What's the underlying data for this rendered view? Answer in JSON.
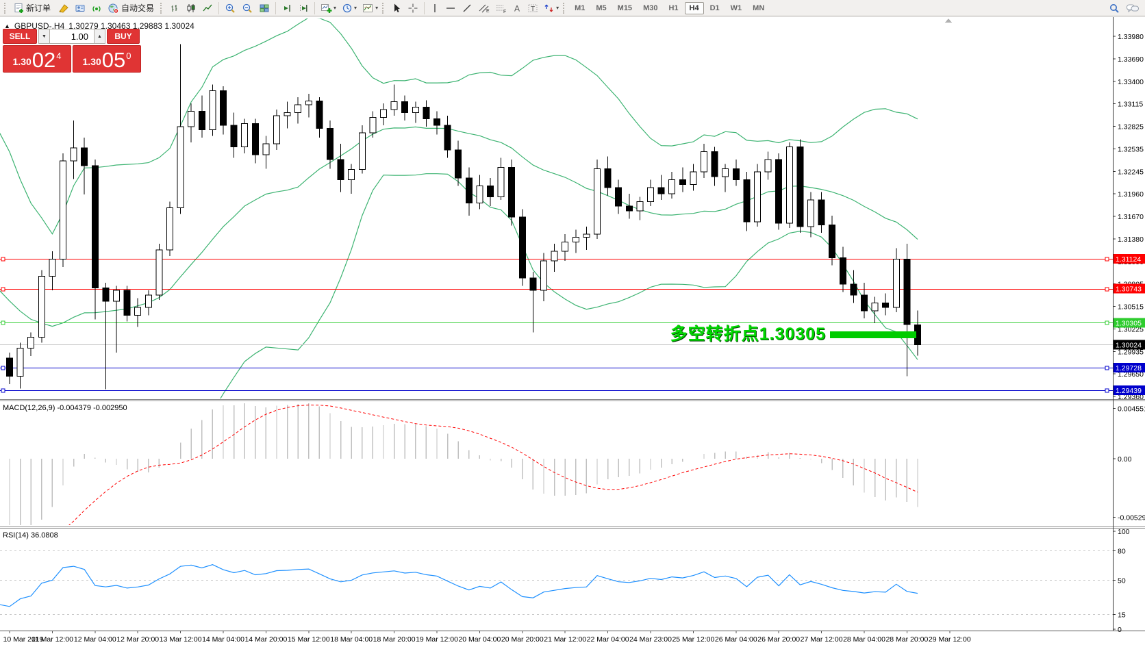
{
  "toolbar": {
    "new_order_label": "新订单",
    "autotrading_label": "自动交易",
    "timeframes": [
      "M1",
      "M5",
      "M15",
      "M30",
      "H1",
      "H4",
      "D1",
      "W1",
      "MN"
    ],
    "active_timeframe": "H4"
  },
  "trade_panel": {
    "sell_label": "SELL",
    "buy_label": "BUY",
    "volume": "1.00",
    "sell_price": {
      "small": "1.30",
      "big": "02",
      "sup": "4"
    },
    "buy_price": {
      "small": "1.30",
      "big": "05",
      "sup": "0"
    }
  },
  "chart_title": {
    "marker": "▲",
    "symbol_period": "GBPUSD-,H4",
    "ohlc": "1.30279 1.30463 1.29883 1.30024"
  },
  "annotation": {
    "text": "多空转折点1.30305",
    "level": 1.30305,
    "color": "#00D800",
    "bar_color": "#00CC00"
  },
  "chart_data": {
    "type": "candlestick",
    "symbol": "GBPUSD-",
    "period": "H4",
    "price_ticks": [
      "1.33980",
      "1.33690",
      "1.33400",
      "1.33115",
      "1.32825",
      "1.32535",
      "1.32245",
      "1.31960",
      "1.31670",
      "1.31380",
      "1.31090",
      "1.30805",
      "1.30515",
      "1.30225",
      "1.29935",
      "1.29650",
      "1.29360"
    ],
    "time_labels": [
      "10 Mar 2019",
      "11 Mar 12:00",
      "12 Mar 04:00",
      "12 Mar 20:00",
      "13 Mar 12:00",
      "14 Mar 04:00",
      "14 Mar 20:00",
      "15 Mar 12:00",
      "18 Mar 04:00",
      "18 Mar 20:00",
      "19 Mar 12:00",
      "20 Mar 04:00",
      "20 Mar 20:00",
      "21 Mar 12:00",
      "22 Mar 04:00",
      "24 Mar 23:00",
      "25 Mar 12:00",
      "26 Mar 04:00",
      "26 Mar 20:00",
      "27 Mar 12:00",
      "28 Mar 04:00",
      "28 Mar 20:00",
      "29 Mar 12:00"
    ],
    "candles": [
      [
        1.2985,
        1.2992,
        1.2952,
        1.2962
      ],
      [
        1.2962,
        1.3005,
        1.2946,
        1.2998
      ],
      [
        1.2998,
        1.3018,
        1.2988,
        1.3012
      ],
      [
        1.3012,
        1.3098,
        1.3005,
        1.309
      ],
      [
        1.309,
        1.3122,
        1.3072,
        1.3112
      ],
      [
        1.3112,
        1.3248,
        1.3102,
        1.3238
      ],
      [
        1.3238,
        1.329,
        1.3215,
        1.3255
      ],
      [
        1.3255,
        1.3268,
        1.3195,
        1.3232
      ],
      [
        1.3232,
        1.324,
        1.3035,
        1.3075
      ],
      [
        1.3075,
        1.3082,
        1.2945,
        1.3058
      ],
      [
        1.3058,
        1.3078,
        1.2992,
        1.3072
      ],
      [
        1.3072,
        1.3078,
        1.3032,
        1.304
      ],
      [
        1.304,
        1.3062,
        1.3025,
        1.305
      ],
      [
        1.305,
        1.3072,
        1.304,
        1.3066
      ],
      [
        1.3066,
        1.3132,
        1.306,
        1.3124
      ],
      [
        1.3124,
        1.3186,
        1.3116,
        1.3178
      ],
      [
        1.3178,
        1.3388,
        1.317,
        1.3282
      ],
      [
        1.3282,
        1.3312,
        1.3262,
        1.3302
      ],
      [
        1.3302,
        1.3322,
        1.3268,
        1.3278
      ],
      [
        1.3278,
        1.3336,
        1.327,
        1.3328
      ],
      [
        1.3328,
        1.3334,
        1.3272,
        1.3284
      ],
      [
        1.3284,
        1.33,
        1.3242,
        1.3256
      ],
      [
        1.3256,
        1.3292,
        1.3248,
        1.3286
      ],
      [
        1.3286,
        1.3292,
        1.3235,
        1.3246
      ],
      [
        1.3246,
        1.327,
        1.3228,
        1.326
      ],
      [
        1.326,
        1.3304,
        1.3252,
        1.3296
      ],
      [
        1.3296,
        1.3314,
        1.328,
        1.33
      ],
      [
        1.33,
        1.332,
        1.3286,
        1.331
      ],
      [
        1.331,
        1.3324,
        1.3294,
        1.3315
      ],
      [
        1.3315,
        1.332,
        1.3268,
        1.328
      ],
      [
        1.328,
        1.329,
        1.3228,
        1.324
      ],
      [
        1.324,
        1.326,
        1.3198,
        1.3214
      ],
      [
        1.3214,
        1.3234,
        1.3196,
        1.3227
      ],
      [
        1.3227,
        1.3284,
        1.3222,
        1.3274
      ],
      [
        1.3274,
        1.3302,
        1.3268,
        1.3294
      ],
      [
        1.3294,
        1.3312,
        1.3284,
        1.3304
      ],
      [
        1.3304,
        1.3336,
        1.3296,
        1.3314
      ],
      [
        1.3314,
        1.3322,
        1.329,
        1.33
      ],
      [
        1.33,
        1.3314,
        1.3287,
        1.3307
      ],
      [
        1.3307,
        1.3316,
        1.3282,
        1.3292
      ],
      [
        1.3292,
        1.3302,
        1.3272,
        1.3284
      ],
      [
        1.3284,
        1.3296,
        1.3242,
        1.3252
      ],
      [
        1.3252,
        1.3264,
        1.3206,
        1.3216
      ],
      [
        1.3216,
        1.323,
        1.3168,
        1.3184
      ],
      [
        1.3184,
        1.322,
        1.3176,
        1.3206
      ],
      [
        1.3206,
        1.3216,
        1.318,
        1.3192
      ],
      [
        1.3192,
        1.3242,
        1.3188,
        1.323
      ],
      [
        1.323,
        1.324,
        1.3155,
        1.3166
      ],
      [
        1.3166,
        1.3176,
        1.3078,
        1.3088
      ],
      [
        1.3088,
        1.3096,
        1.3018,
        1.3072
      ],
      [
        1.3072,
        1.312,
        1.3058,
        1.311
      ],
      [
        1.311,
        1.3132,
        1.3096,
        1.3122
      ],
      [
        1.3122,
        1.3144,
        1.311,
        1.3134
      ],
      [
        1.3134,
        1.315,
        1.312,
        1.314
      ],
      [
        1.314,
        1.3154,
        1.3124,
        1.3144
      ],
      [
        1.3144,
        1.324,
        1.3138,
        1.3228
      ],
      [
        1.3228,
        1.3244,
        1.3194,
        1.3204
      ],
      [
        1.3204,
        1.3214,
        1.317,
        1.318
      ],
      [
        1.318,
        1.3196,
        1.3164,
        1.3174
      ],
      [
        1.3174,
        1.3192,
        1.3162,
        1.3186
      ],
      [
        1.3186,
        1.3214,
        1.318,
        1.3204
      ],
      [
        1.3204,
        1.322,
        1.3188,
        1.3196
      ],
      [
        1.3196,
        1.3224,
        1.319,
        1.3214
      ],
      [
        1.3214,
        1.323,
        1.3198,
        1.3208
      ],
      [
        1.3208,
        1.3234,
        1.32,
        1.3224
      ],
      [
        1.3224,
        1.326,
        1.3216,
        1.325
      ],
      [
        1.325,
        1.3256,
        1.3206,
        1.3218
      ],
      [
        1.3218,
        1.3234,
        1.3198,
        1.3228
      ],
      [
        1.3228,
        1.324,
        1.3206,
        1.3214
      ],
      [
        1.3214,
        1.3224,
        1.3148,
        1.316
      ],
      [
        1.316,
        1.3234,
        1.3154,
        1.3224
      ],
      [
        1.3224,
        1.325,
        1.3214,
        1.324
      ],
      [
        1.324,
        1.3248,
        1.315,
        1.3158
      ],
      [
        1.3158,
        1.3262,
        1.3152,
        1.3256
      ],
      [
        1.3256,
        1.3266,
        1.3146,
        1.3154
      ],
      [
        1.3154,
        1.3198,
        1.314,
        1.3188
      ],
      [
        1.3188,
        1.3198,
        1.3146,
        1.3156
      ],
      [
        1.3156,
        1.3168,
        1.3104,
        1.3114
      ],
      [
        1.3114,
        1.3128,
        1.307,
        1.308
      ],
      [
        1.308,
        1.3098,
        1.3056,
        1.3066
      ],
      [
        1.3066,
        1.3082,
        1.3036,
        1.3046
      ],
      [
        1.3046,
        1.3064,
        1.303,
        1.3056
      ],
      [
        1.3056,
        1.3068,
        1.304,
        1.305
      ],
      [
        1.305,
        1.3126,
        1.3044,
        1.3112
      ],
      [
        1.3112,
        1.3132,
        1.2962,
        1.3028
      ],
      [
        1.30279,
        1.30463,
        1.29883,
        1.30024
      ]
    ],
    "prehistory_closes": [
      1.332,
      1.33,
      1.331,
      1.3275,
      1.325,
      1.326,
      1.322,
      1.3185,
      1.3195,
      1.315,
      1.311,
      1.312,
      1.307,
      1.303,
      1.304,
      1.3,
      1.2975,
      1.2985,
      1.2995,
      1.297,
      1.2955,
      1.2985,
      1.297,
      1.299
    ],
    "hlines": [
      {
        "price": 1.31124,
        "color": "#FF0000",
        "badge_bg": "#FF0000"
      },
      {
        "price": 1.30743,
        "color": "#FF0000",
        "badge_bg": "#FF0000"
      },
      {
        "price": 1.30305,
        "color": "#32CD32",
        "badge_bg": "#2ECC2E"
      },
      {
        "price": 1.30024,
        "color": "#C8C8C8",
        "badge_bg": "#000000",
        "current": true
      },
      {
        "price": 1.29728,
        "color": "#0000CC",
        "badge_bg": "#0000CC"
      },
      {
        "price": 1.29439,
        "color": "#0000CC",
        "badge_bg": "#0000CC"
      }
    ],
    "bollinger": {
      "period": 20,
      "deviation": 2,
      "color": "#3CB371"
    },
    "macd": {
      "label": "MACD(12,26,9)",
      "value_main": "-0.004379",
      "value_signal": "-0.002950",
      "axis_labels": [
        {
          "text": "0.004551",
          "value": 0.004551
        },
        {
          "text": "0.00",
          "value": 0
        },
        {
          "text": "-0.005295",
          "value": -0.005295
        }
      ],
      "hist_color": "#C0C0C0",
      "signal_color": "#FF0000"
    },
    "rsi": {
      "label": "RSI(14)",
      "value": "36.0808",
      "levels": [
        80,
        50,
        15
      ],
      "axis_labels": [
        {
          "text": "100",
          "value": 100
        },
        {
          "text": "80",
          "value": 80
        },
        {
          "text": "50",
          "value": 50
        },
        {
          "text": "15",
          "value": 15
        },
        {
          "text": "0",
          "value": 0
        }
      ],
      "color": "#1E90FF",
      "level_color": "#C8C8C8"
    },
    "scale": {
      "top_label_price": 1.3398,
      "bottom_label_price": 1.2936
    }
  }
}
